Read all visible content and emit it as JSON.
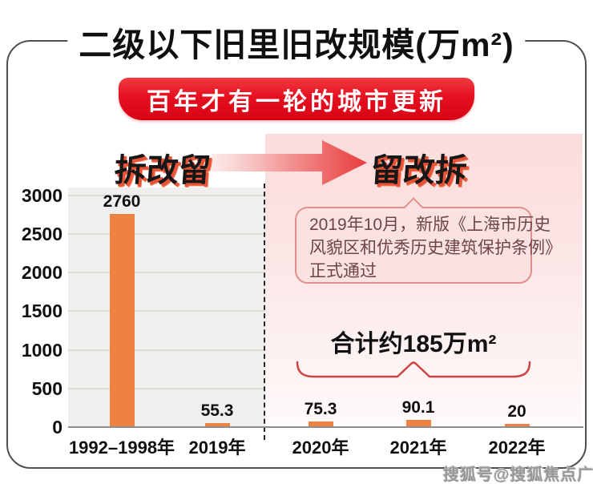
{
  "title": "二级以下旧里旧改规模(万m²)",
  "banner": {
    "text": "百年才有一轮的城市更新",
    "bg_color": "#E5101F",
    "text_color": "#FFFFFF"
  },
  "phases": {
    "left": "拆改留",
    "right": "留改拆",
    "arrow_icon": "right-arrow-icon"
  },
  "bubble": {
    "lines": [
      "2019年10月，新版《上海市历史",
      "风貌区和优秀历史建筑保护条例》",
      "正式通过"
    ],
    "border_color": "#E28F8F",
    "bg_color": "#FBE2E2"
  },
  "total_label": "合计约185万m²",
  "watermark": "搜狐号@搜狐焦点广安站",
  "colors": {
    "bar_orange": "#ED8243",
    "accent_red": "#E5101F",
    "brace_red": "#CC4444",
    "plot_bg_gray": "#F1EFED",
    "pink_zone_top": "#FBDCDC"
  },
  "chart_data": {
    "type": "bar",
    "title": "二级以下旧里旧改规模(万m²)",
    "categories": [
      "1992–1998年",
      "2019年",
      "2020年",
      "2021年",
      "2022年"
    ],
    "values": [
      2760,
      55.3,
      75.3,
      90.1,
      20
    ],
    "value_labels": [
      "2760",
      "55.3",
      "75.3",
      "90.1",
      "20"
    ],
    "yticks": [
      0,
      500,
      1000,
      1500,
      2000,
      2500,
      3000
    ],
    "ylim": [
      0,
      3000
    ],
    "xlabel": "",
    "ylabel": "",
    "grid": true,
    "legend": "none",
    "bar_color": "#ED8243",
    "annotations": {
      "group_total": {
        "text": "合计约185万m²",
        "applies_to": [
          "2020年",
          "2021年",
          "2022年"
        ]
      },
      "divider": "dashed line between 2019年 and 2020年"
    }
  }
}
